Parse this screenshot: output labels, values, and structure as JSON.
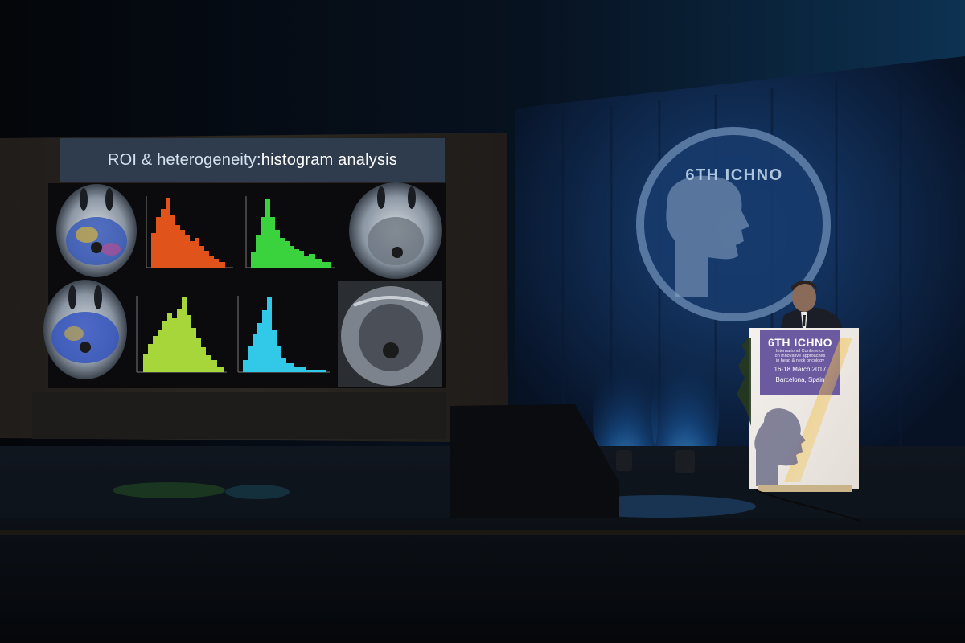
{
  "slide": {
    "title_pre": "ROI & heterogeneity: ",
    "title_post": "histogram analysis"
  },
  "backdrop_logo": {
    "brand": "6TH ICHNO"
  },
  "podium": {
    "brand": "6TH ICHNO",
    "line1": "International Conference",
    "line2": "on innovative approaches",
    "line3": "in head & neck oncology",
    "dates": "16-18 March 2017",
    "city": "Barcelona, Spain"
  },
  "colors": {
    "histogram_1": "#e0531a",
    "histogram_2": "#3ad33d",
    "histogram_3": "#a6d63a",
    "histogram_4": "#32c8e8",
    "podium_panel": "#6b5aa0",
    "stage_light": "#2f9de6"
  }
}
